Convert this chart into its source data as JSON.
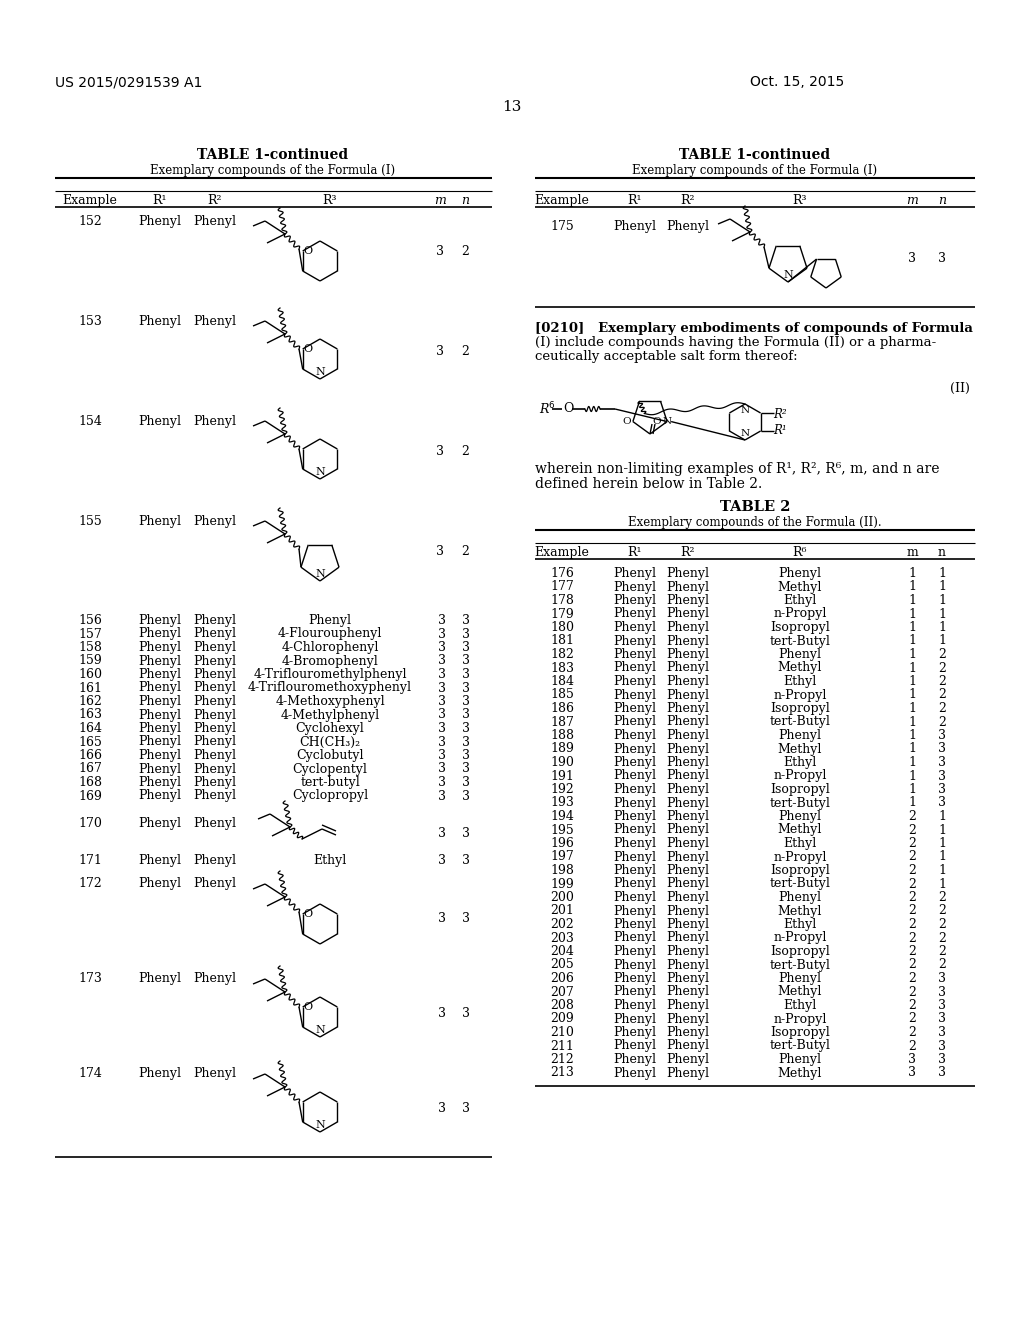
{
  "patent_number": "US 2015/0291539 A1",
  "date": "Oct. 15, 2015",
  "page_number": "13",
  "background_color": "#ffffff",
  "text_color": "#000000",
  "table1L_title": "TABLE 1-continued",
  "table1L_subtitle": "Exemplary compounds of the Formula (I)",
  "table1R_title": "TABLE 1-continued",
  "table1R_subtitle": "Exemplary compounds of the Formula (I)",
  "left_text_rows": [
    [
      "156",
      "Phenyl",
      "Phenyl",
      "Phenyl",
      "3",
      "3"
    ],
    [
      "157",
      "Phenyl",
      "Phenyl",
      "4-Flourouphenyl",
      "3",
      "3"
    ],
    [
      "158",
      "Phenyl",
      "Phenyl",
      "4-Chlorophenyl",
      "3",
      "3"
    ],
    [
      "159",
      "Phenyl",
      "Phenyl",
      "4-Bromophenyl",
      "3",
      "3"
    ],
    [
      "160",
      "Phenyl",
      "Phenyl",
      "4-Triflouromethylphenyl",
      "3",
      "3"
    ],
    [
      "161",
      "Phenyl",
      "Phenyl",
      "4-Triflouromethoxyphenyl",
      "3",
      "3"
    ],
    [
      "162",
      "Phenyl",
      "Phenyl",
      "4-Methoxyphenyl",
      "3",
      "3"
    ],
    [
      "163",
      "Phenyl",
      "Phenyl",
      "4-Methylphenyl",
      "3",
      "3"
    ],
    [
      "164",
      "Phenyl",
      "Phenyl",
      "Cyclohexyl",
      "3",
      "3"
    ],
    [
      "165",
      "Phenyl",
      "Phenyl",
      "CH(CH₃)₂",
      "3",
      "3"
    ],
    [
      "166",
      "Phenyl",
      "Phenyl",
      "Cyclobutyl",
      "3",
      "3"
    ],
    [
      "167",
      "Phenyl",
      "Phenyl",
      "Cyclopentyl",
      "3",
      "3"
    ],
    [
      "168",
      "Phenyl",
      "Phenyl",
      "tert-butyl",
      "3",
      "3"
    ],
    [
      "169",
      "Phenyl",
      "Phenyl",
      "Cyclopropyl",
      "3",
      "3"
    ]
  ],
  "right_rows_text": [
    [
      "176",
      "Phenyl",
      "Phenyl",
      "Phenyl",
      "1",
      "1"
    ],
    [
      "177",
      "Phenyl",
      "Phenyl",
      "Methyl",
      "1",
      "1"
    ],
    [
      "178",
      "Phenyl",
      "Phenyl",
      "Ethyl",
      "1",
      "1"
    ],
    [
      "179",
      "Phenyl",
      "Phenyl",
      "n-Propyl",
      "1",
      "1"
    ],
    [
      "180",
      "Phenyl",
      "Phenyl",
      "Isopropyl",
      "1",
      "1"
    ],
    [
      "181",
      "Phenyl",
      "Phenyl",
      "tert-Butyl",
      "1",
      "1"
    ],
    [
      "182",
      "Phenyl",
      "Phenyl",
      "Phenyl",
      "1",
      "2"
    ],
    [
      "183",
      "Phenyl",
      "Phenyl",
      "Methyl",
      "1",
      "2"
    ],
    [
      "184",
      "Phenyl",
      "Phenyl",
      "Ethyl",
      "1",
      "2"
    ],
    [
      "185",
      "Phenyl",
      "Phenyl",
      "n-Propyl",
      "1",
      "2"
    ],
    [
      "186",
      "Phenyl",
      "Phenyl",
      "Isopropyl",
      "1",
      "2"
    ],
    [
      "187",
      "Phenyl",
      "Phenyl",
      "tert-Butyl",
      "1",
      "2"
    ],
    [
      "188",
      "Phenyl",
      "Phenyl",
      "Phenyl",
      "1",
      "3"
    ],
    [
      "189",
      "Phenyl",
      "Phenyl",
      "Methyl",
      "1",
      "3"
    ],
    [
      "190",
      "Phenyl",
      "Phenyl",
      "Ethyl",
      "1",
      "3"
    ],
    [
      "191",
      "Phenyl",
      "Phenyl",
      "n-Propyl",
      "1",
      "3"
    ],
    [
      "192",
      "Phenyl",
      "Phenyl",
      "Isopropyl",
      "1",
      "3"
    ],
    [
      "193",
      "Phenyl",
      "Phenyl",
      "tert-Butyl",
      "1",
      "3"
    ],
    [
      "194",
      "Phenyl",
      "Phenyl",
      "Phenyl",
      "2",
      "1"
    ],
    [
      "195",
      "Phenyl",
      "Phenyl",
      "Methyl",
      "2",
      "1"
    ],
    [
      "196",
      "Phenyl",
      "Phenyl",
      "Ethyl",
      "2",
      "1"
    ],
    [
      "197",
      "Phenyl",
      "Phenyl",
      "n-Propyl",
      "2",
      "1"
    ],
    [
      "198",
      "Phenyl",
      "Phenyl",
      "Isopropyl",
      "2",
      "1"
    ],
    [
      "199",
      "Phenyl",
      "Phenyl",
      "tert-Butyl",
      "2",
      "1"
    ],
    [
      "200",
      "Phenyl",
      "Phenyl",
      "Phenyl",
      "2",
      "2"
    ],
    [
      "201",
      "Phenyl",
      "Phenyl",
      "Methyl",
      "2",
      "2"
    ],
    [
      "202",
      "Phenyl",
      "Phenyl",
      "Ethyl",
      "2",
      "2"
    ],
    [
      "203",
      "Phenyl",
      "Phenyl",
      "n-Propyl",
      "2",
      "2"
    ],
    [
      "204",
      "Phenyl",
      "Phenyl",
      "Isopropyl",
      "2",
      "2"
    ],
    [
      "205",
      "Phenyl",
      "Phenyl",
      "tert-Butyl",
      "2",
      "2"
    ],
    [
      "206",
      "Phenyl",
      "Phenyl",
      "Phenyl",
      "2",
      "3"
    ],
    [
      "207",
      "Phenyl",
      "Phenyl",
      "Methyl",
      "2",
      "3"
    ],
    [
      "208",
      "Phenyl",
      "Phenyl",
      "Ethyl",
      "2",
      "3"
    ],
    [
      "209",
      "Phenyl",
      "Phenyl",
      "n-Propyl",
      "2",
      "3"
    ],
    [
      "210",
      "Phenyl",
      "Phenyl",
      "Isopropyl",
      "2",
      "3"
    ],
    [
      "211",
      "Phenyl",
      "Phenyl",
      "tert-Butyl",
      "2",
      "3"
    ],
    [
      "212",
      "Phenyl",
      "Phenyl",
      "Phenyl",
      "3",
      "3"
    ],
    [
      "213",
      "Phenyl",
      "Phenyl",
      "Methyl",
      "3",
      "3"
    ]
  ],
  "table2_title": "TABLE 2",
  "table2_subtitle": "Exemplary compounds of the Formula (II).",
  "para0210_line1": "[0210]   Exemplary embodiments of compounds of Formula",
  "para0210_line2": "(I) include compounds having the Formula (II) or a pharma-",
  "para0210_line3": "ceutically acceptable salt form thereof:",
  "wherein_line1": "wherein non-limiting examples of R¹, R², R⁶, m, and n are",
  "wherein_line2": "defined herein below in Table 2."
}
